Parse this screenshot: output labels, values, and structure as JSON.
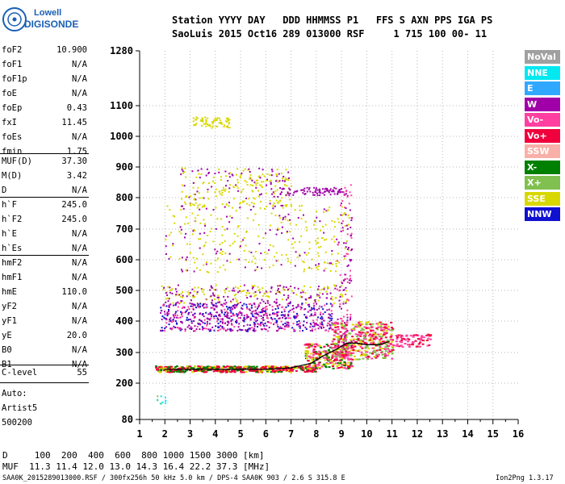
{
  "logo": {
    "line1": "Lowell",
    "line2": "DIGISONDE"
  },
  "header": {
    "row1": "Station YYYY DAY   DDD HHMMSS P1   FFS S AXN PPS IGA PS",
    "row2": "SaoLuis 2015 Oct16 289 013000 RSF     1 715 100 00- 11"
  },
  "params_group1": [
    {
      "name": "foF2",
      "value": "10.900"
    },
    {
      "name": "foF1",
      "value": "N/A"
    },
    {
      "name": "foF1p",
      "value": "N/A"
    },
    {
      "name": "foE",
      "value": "N/A"
    },
    {
      "name": "foEp",
      "value": "0.43"
    },
    {
      "name": "fxI",
      "value": "11.45"
    },
    {
      "name": "foEs",
      "value": "N/A"
    },
    {
      "name": "fmin",
      "value": "1.75"
    }
  ],
  "params_group2": [
    {
      "name": "MUF(D)",
      "value": "37.30"
    },
    {
      "name": "M(D)",
      "value": "3.42"
    },
    {
      "name": "D",
      "value": "N/A"
    }
  ],
  "params_group3": [
    {
      "name": "h`F",
      "value": "245.0"
    },
    {
      "name": "h`F2",
      "value": "245.0"
    },
    {
      "name": "h`E",
      "value": "N/A"
    },
    {
      "name": "h`Es",
      "value": "N/A"
    }
  ],
  "params_group4": [
    {
      "name": "hmF2",
      "value": "N/A"
    },
    {
      "name": "hmF1",
      "value": "N/A"
    },
    {
      "name": "hmE",
      "value": "110.0"
    },
    {
      "name": "yF2",
      "value": "N/A"
    },
    {
      "name": "yF1",
      "value": "N/A"
    },
    {
      "name": "yE",
      "value": "20.0"
    },
    {
      "name": "B0",
      "value": "N/A"
    },
    {
      "name": "B1",
      "value": "N/A"
    }
  ],
  "params_group5": [
    {
      "name": "C-level",
      "value": "55"
    }
  ],
  "auto": {
    "line1": "Auto:",
    "line2": "Artist5",
    "line3": "500200"
  },
  "legend": [
    {
      "label": "NoVal",
      "color": "#a0a0a0"
    },
    {
      "label": "NNE",
      "color": "#00e8f0"
    },
    {
      "label": "E",
      "color": "#30a8ff"
    },
    {
      "label": "W",
      "color": "#a000a8"
    },
    {
      "label": "Vo-",
      "color": "#ff40a0"
    },
    {
      "label": "Vo+",
      "color": "#f0003c"
    },
    {
      "label": "SSW",
      "color": "#f8b0a8"
    },
    {
      "label": "X-",
      "color": "#008000"
    },
    {
      "label": "X+",
      "color": "#80c050"
    },
    {
      "label": "SSE",
      "color": "#d8d800"
    },
    {
      "label": "NNW",
      "color": "#1010d0"
    }
  ],
  "footer": {
    "d_line": "D     100  200  400  600  800 1000 1500 3000 [km]",
    "muf_line": "MUF  11.3 11.4 12.0 13.0 14.3 16.4 22.2 37.3 [MHz]",
    "file_line": "SAA0K_2015289013000.RSF / 300fx256h 50 kHz 5.0 km / DPS-4 SAA0K 903 / 2.6 S 315.8 E",
    "version": "Ion2Png 1.3.17"
  },
  "chart_data": {
    "type": "scatter",
    "xlim": [
      1,
      16
    ],
    "ylim": [
      80,
      1280
    ],
    "y_scale": "nonlinear",
    "x_ticks": [
      1,
      2,
      3,
      4,
      5,
      6,
      7,
      8,
      9,
      10,
      11,
      12,
      13,
      14,
      15,
      16
    ],
    "y_ticks": [
      80,
      200,
      300,
      400,
      500,
      600,
      700,
      800,
      900,
      1000,
      1100,
      1280
    ],
    "grid": true,
    "trace": {
      "x": [
        2.0,
        3.0,
        4.0,
        5.0,
        6.0,
        7.0,
        7.8,
        8.3,
        8.8,
        9.2,
        9.6,
        10.0,
        10.5,
        10.9
      ],
      "y": [
        245,
        245,
        245,
        245,
        245,
        250,
        265,
        290,
        310,
        330,
        330,
        325,
        325,
        335
      ]
    }
  }
}
